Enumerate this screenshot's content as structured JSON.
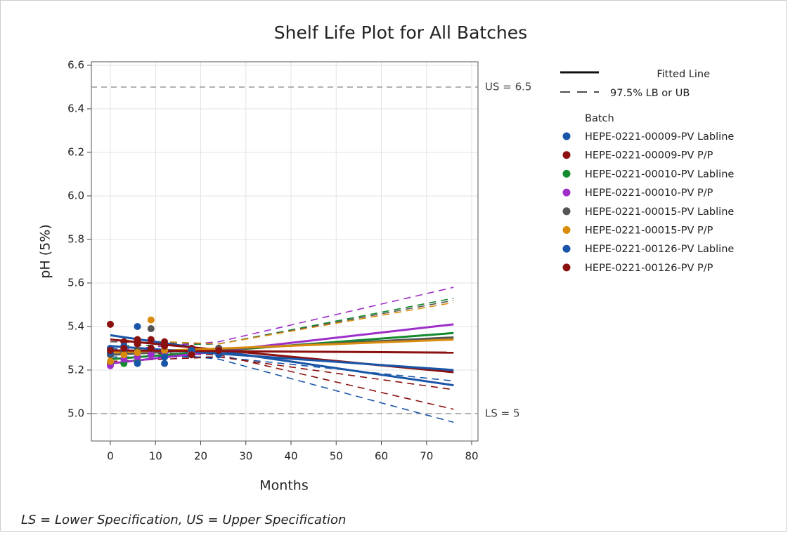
{
  "chart_data": {
    "type": "shelf_life",
    "title": "Shelf Life Plot for All Batches",
    "x_label": "Months",
    "y_label": "pH (5%)",
    "footnote": "LS = Lower Specification, US = Upper Specification",
    "xlim": [
      -4.2,
      81.4
    ],
    "ylim": [
      4.874,
      6.616
    ],
    "xticks": [
      0,
      10,
      20,
      30,
      40,
      50,
      60,
      70,
      80
    ],
    "yticks": [
      {
        "value": 5,
        "label": "5.0"
      },
      5.2,
      5.4,
      5.6,
      5.8,
      {
        "value": 6,
        "label": "6.0"
      },
      6.2,
      6.4,
      6.6
    ],
    "grid": true,
    "spec_lines": [
      {
        "value": 6.5,
        "label": "US = 6.5"
      },
      {
        "value": 5,
        "label": "LS = 5"
      }
    ],
    "legend_lines": {
      "fit": "Fitted Line",
      "bound": "97.5% LB or UB"
    },
    "legend_title": "Batch",
    "fit_x": [
      0,
      76
    ],
    "bound_x": [
      0,
      24,
      76
    ],
    "point_x": [
      0,
      3,
      6,
      9,
      12,
      18,
      24
    ],
    "series": [
      {
        "name": "HEPE-0221-00009-PV Labline",
        "color": "#1a56a8",
        "values": [
          5.3,
          5.29,
          5.4,
          5.3,
          5.23,
          5.28,
          5.27
        ],
        "fit": [
          5.36,
          5.13
        ],
        "bound": [
          5.3,
          5.25,
          4.96
        ]
      },
      {
        "name": "HEPE-0221-00009-PV P/P",
        "color": "#8b1010",
        "values": [
          5.41,
          5.33,
          5.32,
          5.34,
          5.33,
          5.3,
          5.28
        ],
        "fit": [
          5.34,
          5.19
        ],
        "bound": [
          5.28,
          5.27,
          5.02
        ]
      },
      {
        "name": "HEPE-0221-00010-PV Labline",
        "color": "#138a2e",
        "values": [
          5.23,
          5.23,
          5.24,
          5.27,
          5.26,
          5.28,
          5.3
        ],
        "fit": [
          5.25,
          5.37
        ],
        "bound": [
          5.31,
          5.32,
          5.53
        ]
      },
      {
        "name": "HEPE-0221-00010-PV P/P",
        "color": "#9d2fc8",
        "values": [
          5.22,
          5.25,
          5.26,
          5.27,
          5.28,
          5.29,
          5.3
        ],
        "fit": [
          5.23,
          5.41
        ],
        "bound": [
          5.29,
          5.33,
          5.58
        ]
      },
      {
        "name": "HEPE-0221-00015-PV Labline",
        "color": "#555555",
        "values": [
          5.27,
          5.28,
          5.29,
          5.39,
          5.29,
          5.27,
          5.3
        ],
        "fit": [
          5.27,
          5.35
        ],
        "bound": [
          5.33,
          5.32,
          5.52
        ]
      },
      {
        "name": "HEPE-0221-00015-PV P/P",
        "color": "#d98c0c",
        "values": [
          5.24,
          5.27,
          5.28,
          5.43,
          5.29,
          5.28,
          5.29
        ],
        "fit": [
          5.28,
          5.34
        ],
        "bound": [
          5.34,
          5.32,
          5.51
        ]
      },
      {
        "name": "HEPE-0221-00126-PV Labline",
        "color": "#1a56a8",
        "values": [
          5.28,
          5.31,
          5.23,
          5.3,
          5.26,
          5.29,
          5.28
        ],
        "fit": [
          5.31,
          5.2
        ],
        "bound": [
          5.26,
          5.26,
          5.15
        ]
      },
      {
        "name": "HEPE-0221-00126-PV P/P",
        "color": "#8b1010",
        "values": [
          5.29,
          5.3,
          5.34,
          5.3,
          5.31,
          5.27,
          5.29
        ],
        "fit": [
          5.29,
          5.28
        ],
        "bound": [
          5.24,
          5.26,
          5.11
        ]
      }
    ]
  }
}
